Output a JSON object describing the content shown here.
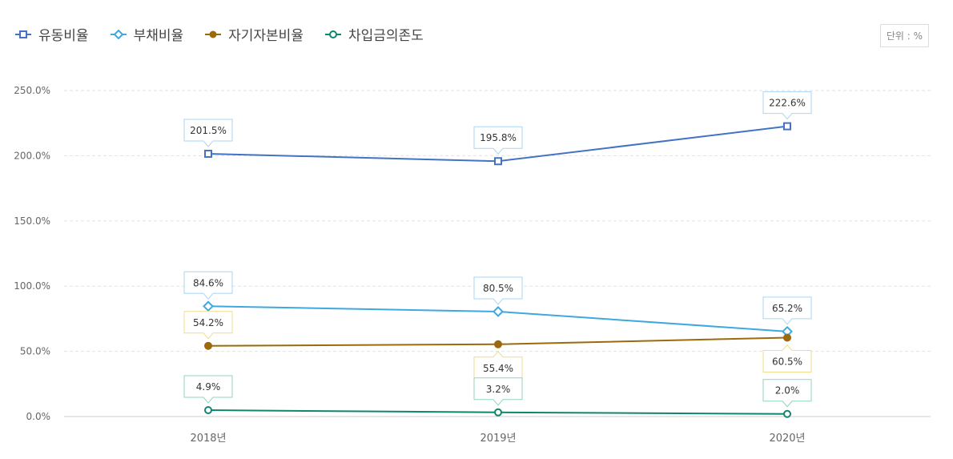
{
  "legend": [
    {
      "label": "유동비율",
      "color": "#4472c4",
      "marker": "square"
    },
    {
      "label": "부채비율",
      "color": "#3ea8e0",
      "marker": "diamond"
    },
    {
      "label": "자기자본비율",
      "color": "#9c6a0c",
      "marker": "circle-filled"
    },
    {
      "label": "차입금의존도",
      "color": "#11866f",
      "marker": "circle-open"
    }
  ],
  "unit_label": "단위 : %",
  "chart_data": {
    "type": "line",
    "categories": [
      "2018년",
      "2019년",
      "2020년"
    ],
    "ylim": [
      0,
      250
    ],
    "yticks": [
      0,
      50,
      100,
      150,
      200,
      250
    ],
    "ytick_labels": [
      "0.0%",
      "50.0%",
      "100.0%",
      "150.0%",
      "200.0%",
      "250.0%"
    ],
    "grid": true,
    "legend_position": "top-left",
    "series": [
      {
        "name": "유동비율",
        "values": [
          201.5,
          195.8,
          222.6
        ],
        "labels": [
          "201.5%",
          "195.8%",
          "222.6%"
        ],
        "color": "#4472c4",
        "label_border": "#a9d6f0",
        "marker": "square",
        "label_pos": [
          "above",
          "above",
          "above"
        ]
      },
      {
        "name": "부채비율",
        "values": [
          84.6,
          80.5,
          65.2
        ],
        "labels": [
          "84.6%",
          "80.5%",
          "65.2%"
        ],
        "color": "#3ea8e0",
        "label_border": "#a9d6f0",
        "marker": "diamond",
        "label_pos": [
          "above",
          "above",
          "above"
        ]
      },
      {
        "name": "자기자본비율",
        "values": [
          54.2,
          55.4,
          60.5
        ],
        "labels": [
          "54.2%",
          "55.4%",
          "60.5%"
        ],
        "color": "#9c6a0c",
        "label_border": "#f0dc8c",
        "marker": "circle-filled",
        "label_pos": [
          "above",
          "below",
          "below"
        ]
      },
      {
        "name": "차입금의존도",
        "values": [
          4.9,
          3.2,
          2.0
        ],
        "labels": [
          "4.9%",
          "3.2%",
          "2.0%"
        ],
        "color": "#11866f",
        "label_border": "#8fd3c2",
        "marker": "circle-open",
        "label_pos": [
          "above",
          "above",
          "above"
        ]
      }
    ]
  }
}
